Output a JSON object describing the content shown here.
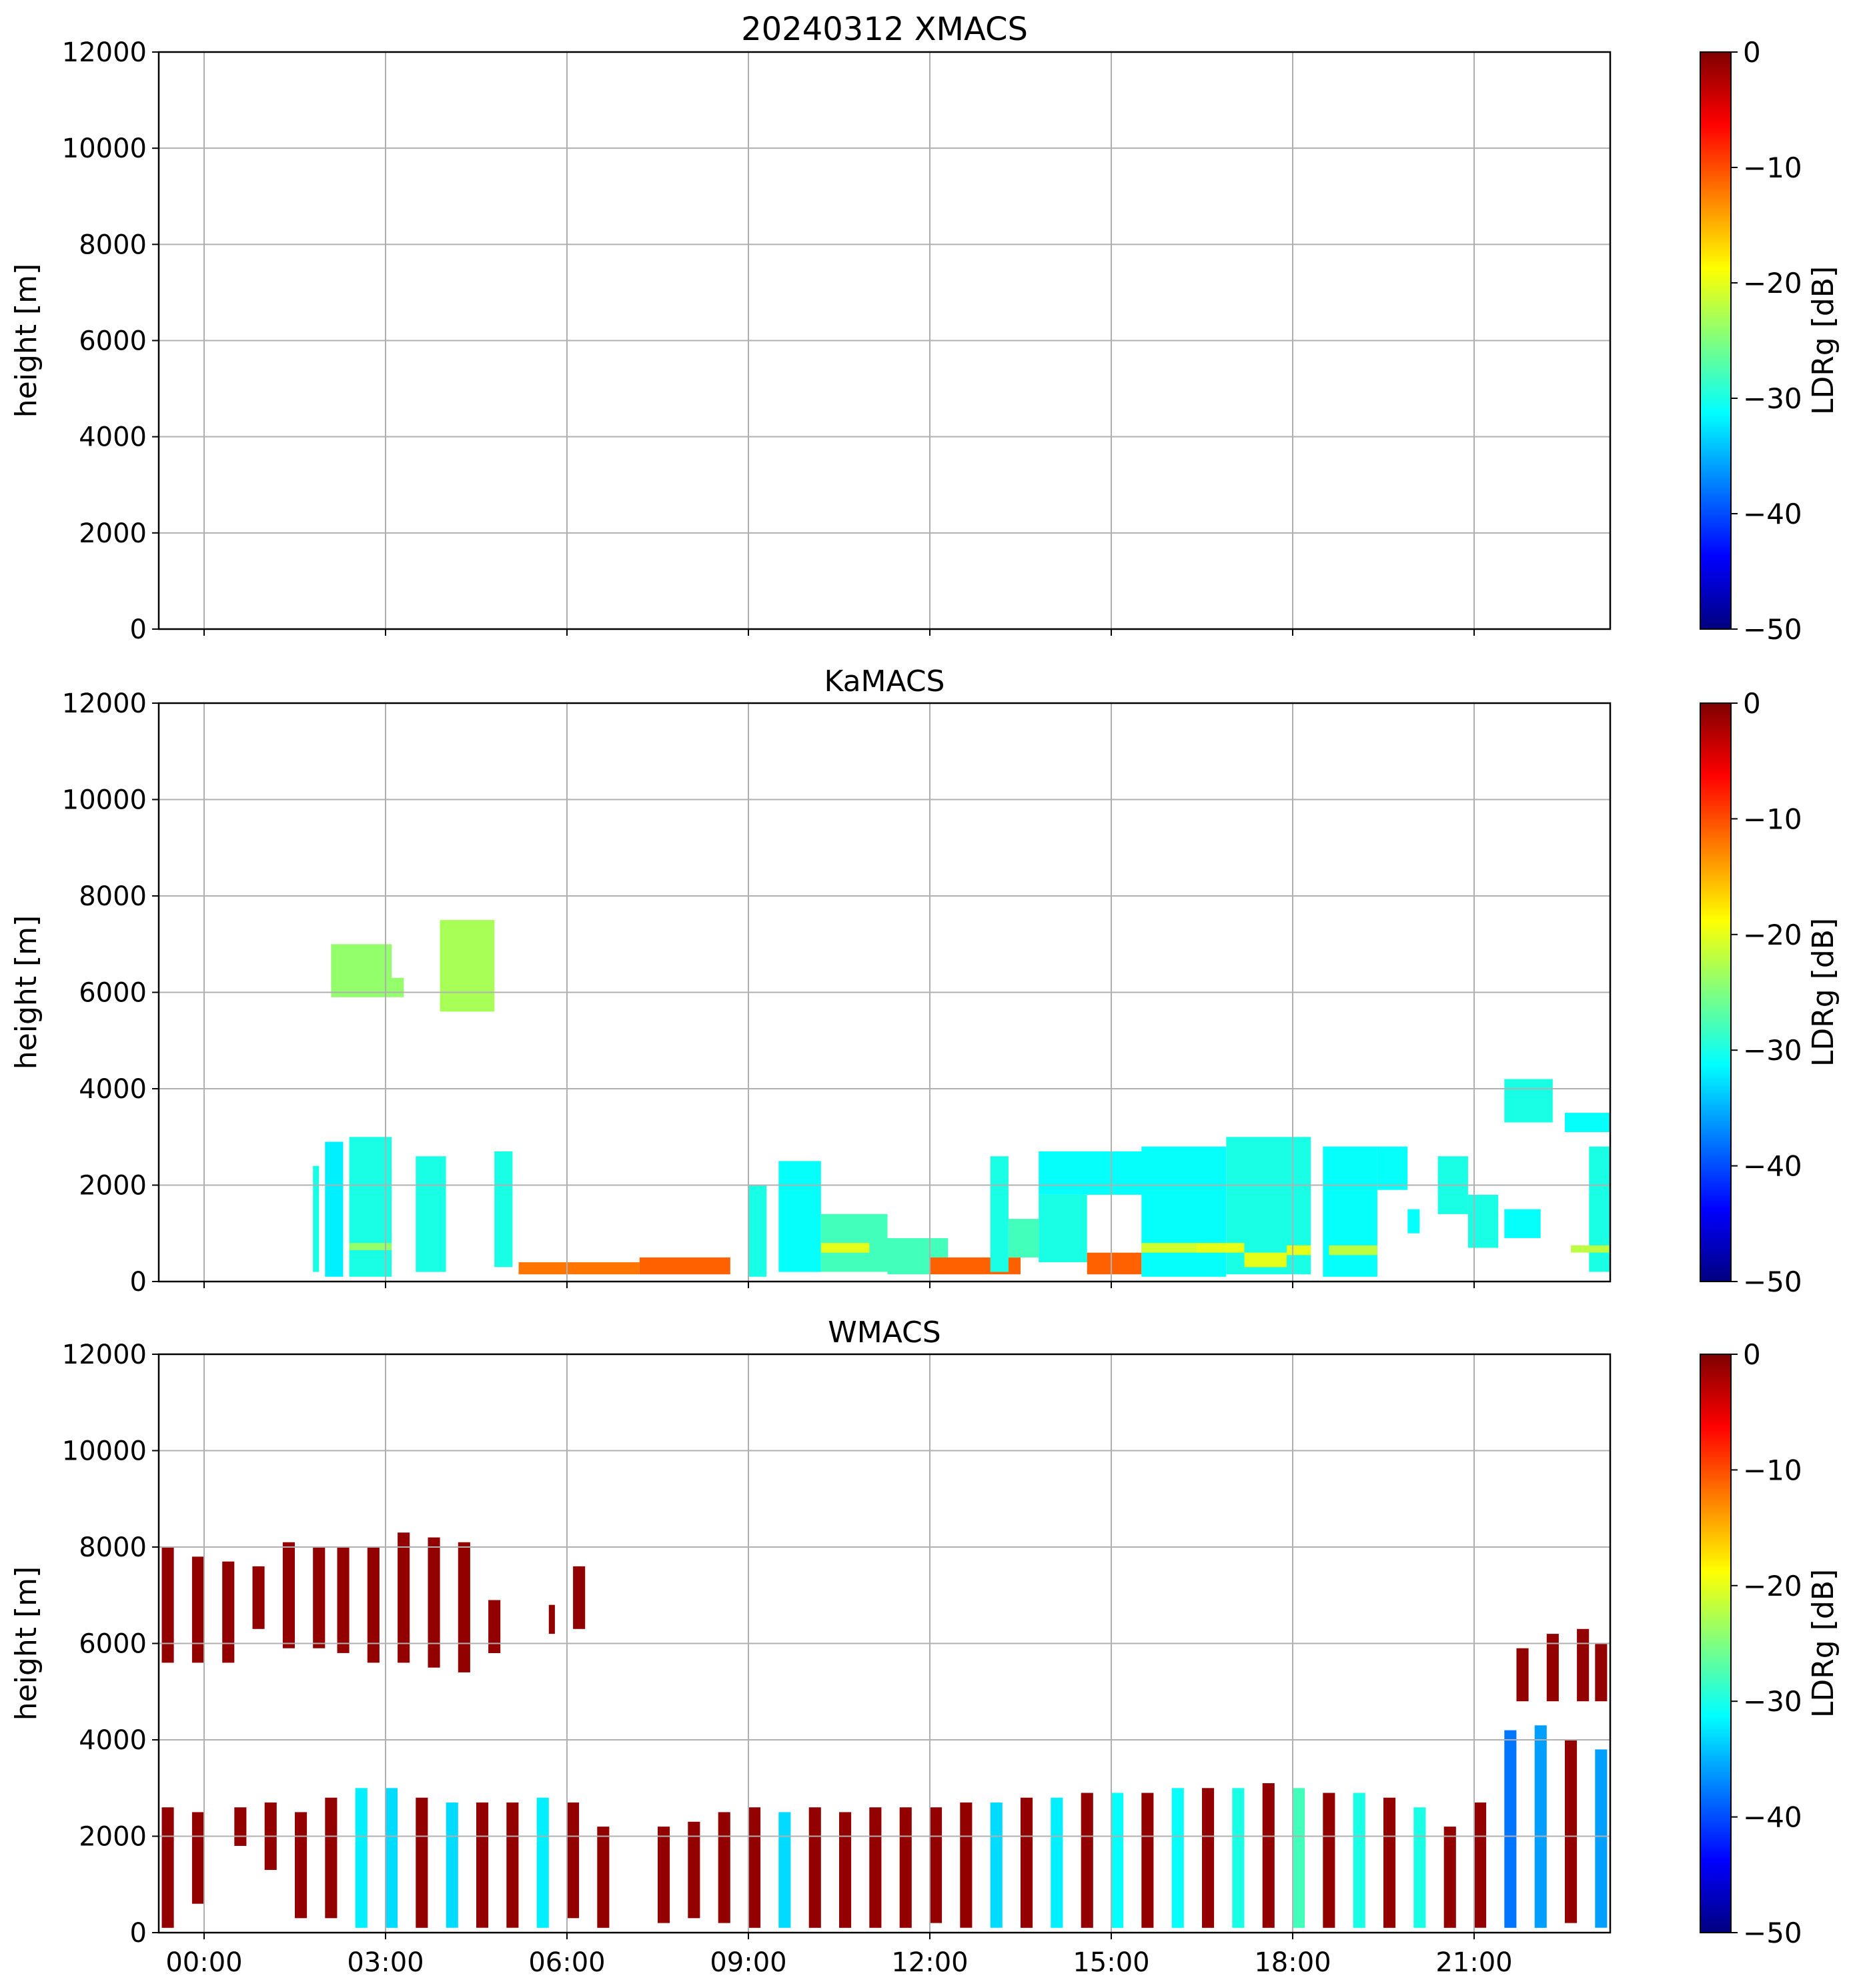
{
  "colormap": {
    "name": "jet",
    "stops": [
      "#00007f",
      "#0000ff",
      "#007fff",
      "#00ffff",
      "#7fff7f",
      "#ffff00",
      "#ff7f00",
      "#ff0000",
      "#7f0000"
    ]
  },
  "chart_data": [
    {
      "type": "heatmap",
      "title": "20240312 XMACS",
      "ylabel": "height [m]",
      "xlabel": "",
      "ylim": [
        0,
        12000
      ],
      "xlim_hours": [
        -0.75,
        23.25
      ],
      "y_ticks": [
        "0",
        "2000",
        "4000",
        "6000",
        "8000",
        "10000",
        "12000"
      ],
      "x_ticks": [],
      "grid": true,
      "colorbar": {
        "label": "LDRg [dB]",
        "range": [
          -50,
          0
        ],
        "ticks": [
          "0",
          "−10",
          "−20",
          "−30",
          "−40",
          "−50"
        ]
      },
      "cells": []
    },
    {
      "type": "heatmap",
      "title": "KaMACS",
      "ylabel": "height [m]",
      "xlabel": "",
      "ylim": [
        0,
        12000
      ],
      "xlim_hours": [
        -0.75,
        23.25
      ],
      "y_ticks": [
        "0",
        "2000",
        "4000",
        "6000",
        "8000",
        "10000",
        "12000"
      ],
      "x_ticks": [],
      "grid": true,
      "colorbar": {
        "label": "LDRg [dB]",
        "range": [
          -50,
          0
        ],
        "ticks": [
          "0",
          "−10",
          "−20",
          "−30",
          "−40",
          "−50"
        ]
      },
      "cells": [
        {
          "t0": 2.1,
          "t1": 3.1,
          "h0": 5900,
          "h1": 7000,
          "ldr": -24
        },
        {
          "t0": 3.1,
          "t1": 3.3,
          "h0": 5900,
          "h1": 6300,
          "ldr": -24
        },
        {
          "t0": 3.9,
          "t1": 4.8,
          "h0": 5600,
          "h1": 7500,
          "ldr": -23
        },
        {
          "t0": 1.8,
          "t1": 1.9,
          "h0": 200,
          "h1": 2400,
          "ldr": -30
        },
        {
          "t0": 2.0,
          "t1": 2.3,
          "h0": 100,
          "h1": 2900,
          "ldr": -32
        },
        {
          "t0": 2.4,
          "t1": 3.1,
          "h0": 100,
          "h1": 3000,
          "ldr": -30
        },
        {
          "t0": 3.5,
          "t1": 4.0,
          "h0": 200,
          "h1": 2600,
          "ldr": -30
        },
        {
          "t0": 4.8,
          "t1": 5.1,
          "h0": 300,
          "h1": 2700,
          "ldr": -30
        },
        {
          "t0": 5.2,
          "t1": 7.2,
          "h0": 150,
          "h1": 400,
          "ldr": -12
        },
        {
          "t0": 7.2,
          "t1": 8.7,
          "h0": 150,
          "h1": 500,
          "ldr": -11
        },
        {
          "t0": 9.0,
          "t1": 9.3,
          "h0": 100,
          "h1": 2000,
          "ldr": -30
        },
        {
          "t0": 9.5,
          "t1": 10.2,
          "h0": 200,
          "h1": 2500,
          "ldr": -31
        },
        {
          "t0": 10.2,
          "t1": 11.3,
          "h0": 200,
          "h1": 1400,
          "ldr": -28
        },
        {
          "t0": 11.3,
          "t1": 12.3,
          "h0": 150,
          "h1": 900,
          "ldr": -28
        },
        {
          "t0": 12.0,
          "t1": 13.5,
          "h0": 150,
          "h1": 500,
          "ldr": -11
        },
        {
          "t0": 13.0,
          "t1": 13.3,
          "h0": 200,
          "h1": 2600,
          "ldr": -30
        },
        {
          "t0": 13.3,
          "t1": 13.8,
          "h0": 500,
          "h1": 1300,
          "ldr": -28
        },
        {
          "t0": 13.8,
          "t1": 16.3,
          "h0": 1800,
          "h1": 2700,
          "ldr": -31
        },
        {
          "t0": 13.8,
          "t1": 14.6,
          "h0": 400,
          "h1": 1800,
          "ldr": -30
        },
        {
          "t0": 14.6,
          "t1": 15.5,
          "h0": 150,
          "h1": 600,
          "ldr": -11
        },
        {
          "t0": 15.5,
          "t1": 16.9,
          "h0": 100,
          "h1": 2800,
          "ldr": -31
        },
        {
          "t0": 16.9,
          "t1": 18.3,
          "h0": 150,
          "h1": 3000,
          "ldr": -30
        },
        {
          "t0": 18.5,
          "t1": 19.4,
          "h0": 100,
          "h1": 2800,
          "ldr": -31
        },
        {
          "t0": 19.4,
          "t1": 19.9,
          "h0": 1900,
          "h1": 2800,
          "ldr": -31
        },
        {
          "t0": 19.9,
          "t1": 20.1,
          "h0": 1000,
          "h1": 1500,
          "ldr": -31
        },
        {
          "t0": 20.4,
          "t1": 20.9,
          "h0": 1400,
          "h1": 2600,
          "ldr": -30
        },
        {
          "t0": 20.9,
          "t1": 21.4,
          "h0": 700,
          "h1": 1800,
          "ldr": -30
        },
        {
          "t0": 21.5,
          "t1": 22.3,
          "h0": 3300,
          "h1": 4200,
          "ldr": -30
        },
        {
          "t0": 21.5,
          "t1": 22.1,
          "h0": 900,
          "h1": 1500,
          "ldr": -31
        },
        {
          "t0": 22.5,
          "t1": 23.25,
          "h0": 3100,
          "h1": 3500,
          "ldr": -31
        },
        {
          "t0": 22.9,
          "t1": 23.25,
          "h0": 200,
          "h1": 2800,
          "ldr": -30
        },
        {
          "t0": 15.5,
          "t1": 16.4,
          "h0": 600,
          "h1": 800,
          "ldr": -21
        },
        {
          "t0": 16.4,
          "t1": 17.2,
          "h0": 600,
          "h1": 800,
          "ldr": -20
        },
        {
          "t0": 17.2,
          "t1": 17.9,
          "h0": 300,
          "h1": 600,
          "ldr": -20
        },
        {
          "t0": 17.9,
          "t1": 18.3,
          "h0": 550,
          "h1": 750,
          "ldr": -20
        },
        {
          "t0": 18.6,
          "t1": 19.4,
          "h0": 550,
          "h1": 750,
          "ldr": -22
        },
        {
          "t0": 10.2,
          "t1": 11.0,
          "h0": 600,
          "h1": 800,
          "ldr": -20
        },
        {
          "t0": 2.4,
          "t1": 3.1,
          "h0": 650,
          "h1": 800,
          "ldr": -24
        },
        {
          "t0": 22.6,
          "t1": 23.25,
          "h0": 600,
          "h1": 750,
          "ldr": -22
        }
      ]
    },
    {
      "type": "heatmap",
      "title": "WMACS",
      "ylabel": "height [m]",
      "xlabel": "",
      "ylim": [
        0,
        12000
      ],
      "xlim_hours": [
        -0.75,
        23.25
      ],
      "y_ticks": [
        "0",
        "2000",
        "4000",
        "6000",
        "8000",
        "10000",
        "12000"
      ],
      "x_ticks": [
        "00:00",
        "03:00",
        "06:00",
        "09:00",
        "12:00",
        "15:00",
        "18:00",
        "21:00"
      ],
      "grid": true,
      "colorbar": {
        "label": "LDRg [dB]",
        "range": [
          -50,
          0
        ],
        "ticks": [
          "0",
          "−10",
          "−20",
          "−30",
          "−40",
          "−50"
        ]
      },
      "cells": [
        {
          "t0": -0.7,
          "t1": -0.5,
          "h0": 5600,
          "h1": 8000,
          "ldr": -1
        },
        {
          "t0": -0.2,
          "t1": 0.0,
          "h0": 5600,
          "h1": 7800,
          "ldr": -1
        },
        {
          "t0": 0.3,
          "t1": 0.5,
          "h0": 5600,
          "h1": 7700,
          "ldr": -1
        },
        {
          "t0": 0.8,
          "t1": 1.0,
          "h0": 6300,
          "h1": 7600,
          "ldr": -1
        },
        {
          "t0": 1.3,
          "t1": 1.5,
          "h0": 5900,
          "h1": 8100,
          "ldr": -1
        },
        {
          "t0": 1.8,
          "t1": 2.0,
          "h0": 5900,
          "h1": 8000,
          "ldr": -1
        },
        {
          "t0": 2.2,
          "t1": 2.4,
          "h0": 5800,
          "h1": 8000,
          "ldr": -1
        },
        {
          "t0": 2.7,
          "t1": 2.9,
          "h0": 5600,
          "h1": 8000,
          "ldr": -1
        },
        {
          "t0": 3.2,
          "t1": 3.4,
          "h0": 5600,
          "h1": 8300,
          "ldr": -1
        },
        {
          "t0": 3.7,
          "t1": 3.9,
          "h0": 5500,
          "h1": 8200,
          "ldr": -1
        },
        {
          "t0": 4.2,
          "t1": 4.4,
          "h0": 5400,
          "h1": 8100,
          "ldr": -1
        },
        {
          "t0": 4.7,
          "t1": 4.9,
          "h0": 5800,
          "h1": 6900,
          "ldr": -1
        },
        {
          "t0": 5.7,
          "t1": 5.8,
          "h0": 6200,
          "h1": 6800,
          "ldr": -1
        },
        {
          "t0": 6.1,
          "t1": 6.3,
          "h0": 6300,
          "h1": 7600,
          "ldr": -1
        },
        {
          "t0": -0.7,
          "t1": -0.5,
          "h0": 100,
          "h1": 2600,
          "ldr": -1
        },
        {
          "t0": -0.2,
          "t1": 0.0,
          "h0": 600,
          "h1": 2500,
          "ldr": -1
        },
        {
          "t0": 0.5,
          "t1": 0.7,
          "h0": 1800,
          "h1": 2600,
          "ldr": -1
        },
        {
          "t0": 1.0,
          "t1": 1.2,
          "h0": 1300,
          "h1": 2700,
          "ldr": -1
        },
        {
          "t0": 1.5,
          "t1": 1.7,
          "h0": 300,
          "h1": 2500,
          "ldr": -1
        },
        {
          "t0": 2.0,
          "t1": 2.2,
          "h0": 300,
          "h1": 2800,
          "ldr": -1
        },
        {
          "t0": 2.5,
          "t1": 2.7,
          "h0": 100,
          "h1": 3000,
          "ldr": -32
        },
        {
          "t0": 3.0,
          "t1": 3.2,
          "h0": 100,
          "h1": 3000,
          "ldr": -33
        },
        {
          "t0": 3.5,
          "t1": 3.7,
          "h0": 100,
          "h1": 2800,
          "ldr": -1
        },
        {
          "t0": 4.0,
          "t1": 4.2,
          "h0": 100,
          "h1": 2700,
          "ldr": -33
        },
        {
          "t0": 4.5,
          "t1": 4.7,
          "h0": 100,
          "h1": 2700,
          "ldr": -1
        },
        {
          "t0": 5.0,
          "t1": 5.2,
          "h0": 100,
          "h1": 2700,
          "ldr": -1
        },
        {
          "t0": 5.5,
          "t1": 5.7,
          "h0": 100,
          "h1": 2800,
          "ldr": -32
        },
        {
          "t0": 6.0,
          "t1": 6.2,
          "h0": 300,
          "h1": 2700,
          "ldr": -1
        },
        {
          "t0": 6.5,
          "t1": 6.7,
          "h0": 100,
          "h1": 2200,
          "ldr": -1
        },
        {
          "t0": 7.5,
          "t1": 7.7,
          "h0": 200,
          "h1": 2200,
          "ldr": -1
        },
        {
          "t0": 8.0,
          "t1": 8.2,
          "h0": 300,
          "h1": 2300,
          "ldr": -1
        },
        {
          "t0": 8.5,
          "t1": 8.7,
          "h0": 200,
          "h1": 2500,
          "ldr": -1
        },
        {
          "t0": 9.0,
          "t1": 9.2,
          "h0": 100,
          "h1": 2600,
          "ldr": -1
        },
        {
          "t0": 9.5,
          "t1": 9.7,
          "h0": 100,
          "h1": 2500,
          "ldr": -33
        },
        {
          "t0": 10.0,
          "t1": 10.2,
          "h0": 100,
          "h1": 2600,
          "ldr": -1
        },
        {
          "t0": 10.5,
          "t1": 10.7,
          "h0": 100,
          "h1": 2500,
          "ldr": -1
        },
        {
          "t0": 11.0,
          "t1": 11.2,
          "h0": 100,
          "h1": 2600,
          "ldr": -1
        },
        {
          "t0": 11.5,
          "t1": 11.7,
          "h0": 100,
          "h1": 2600,
          "ldr": -1
        },
        {
          "t0": 12.0,
          "t1": 12.2,
          "h0": 200,
          "h1": 2600,
          "ldr": -1
        },
        {
          "t0": 12.5,
          "t1": 12.7,
          "h0": 100,
          "h1": 2700,
          "ldr": -1
        },
        {
          "t0": 13.0,
          "t1": 13.2,
          "h0": 100,
          "h1": 2700,
          "ldr": -33
        },
        {
          "t0": 13.5,
          "t1": 13.7,
          "h0": 100,
          "h1": 2800,
          "ldr": -1
        },
        {
          "t0": 14.0,
          "t1": 14.2,
          "h0": 100,
          "h1": 2800,
          "ldr": -32
        },
        {
          "t0": 14.5,
          "t1": 14.7,
          "h0": 100,
          "h1": 2900,
          "ldr": -1
        },
        {
          "t0": 15.0,
          "t1": 15.2,
          "h0": 100,
          "h1": 2900,
          "ldr": -31
        },
        {
          "t0": 15.5,
          "t1": 15.7,
          "h0": 100,
          "h1": 2900,
          "ldr": -1
        },
        {
          "t0": 16.0,
          "t1": 16.2,
          "h0": 100,
          "h1": 3000,
          "ldr": -31
        },
        {
          "t0": 16.5,
          "t1": 16.7,
          "h0": 100,
          "h1": 3000,
          "ldr": -1
        },
        {
          "t0": 17.0,
          "t1": 17.2,
          "h0": 100,
          "h1": 3000,
          "ldr": -30
        },
        {
          "t0": 17.5,
          "t1": 17.7,
          "h0": 100,
          "h1": 3100,
          "ldr": -1
        },
        {
          "t0": 18.0,
          "t1": 18.2,
          "h0": 100,
          "h1": 3000,
          "ldr": -28
        },
        {
          "t0": 18.5,
          "t1": 18.7,
          "h0": 100,
          "h1": 2900,
          "ldr": -1
        },
        {
          "t0": 19.0,
          "t1": 19.2,
          "h0": 100,
          "h1": 2900,
          "ldr": -30
        },
        {
          "t0": 19.5,
          "t1": 19.7,
          "h0": 100,
          "h1": 2800,
          "ldr": -1
        },
        {
          "t0": 20.0,
          "t1": 20.2,
          "h0": 100,
          "h1": 2600,
          "ldr": -30
        },
        {
          "t0": 20.5,
          "t1": 20.7,
          "h0": 100,
          "h1": 2200,
          "ldr": -1
        },
        {
          "t0": 21.0,
          "t1": 21.2,
          "h0": 100,
          "h1": 2700,
          "ldr": -1
        },
        {
          "t0": 21.5,
          "t1": 21.7,
          "h0": 100,
          "h1": 4200,
          "ldr": -38
        },
        {
          "t0": 22.0,
          "t1": 22.2,
          "h0": 100,
          "h1": 4300,
          "ldr": -36
        },
        {
          "t0": 22.5,
          "t1": 22.7,
          "h0": 200,
          "h1": 4000,
          "ldr": -1
        },
        {
          "t0": 23.0,
          "t1": 23.2,
          "h0": 100,
          "h1": 3800,
          "ldr": -36
        },
        {
          "t0": 21.7,
          "t1": 21.9,
          "h0": 4800,
          "h1": 5900,
          "ldr": -1
        },
        {
          "t0": 22.2,
          "t1": 22.4,
          "h0": 4800,
          "h1": 6200,
          "ldr": -1
        },
        {
          "t0": 22.7,
          "t1": 22.9,
          "h0": 4800,
          "h1": 6300,
          "ldr": -1
        },
        {
          "t0": 23.0,
          "t1": 23.2,
          "h0": 4800,
          "h1": 6000,
          "ldr": -1
        }
      ]
    }
  ]
}
